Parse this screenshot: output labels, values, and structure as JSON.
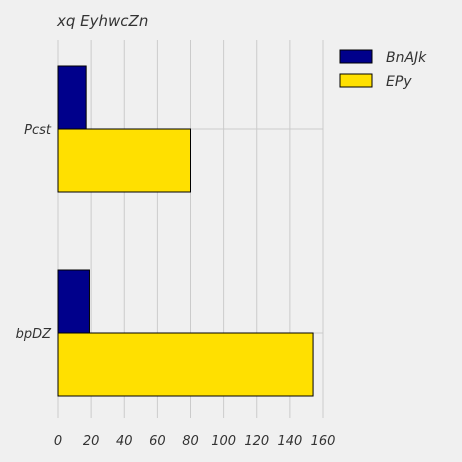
{
  "chart_data": {
    "type": "bar",
    "orientation": "horizontal",
    "title": "xq EyhwcZn",
    "xlabel": "",
    "ylabel": "",
    "categories": [
      "Pcst",
      "bpDZ"
    ],
    "series": [
      {
        "name": "BnAJk",
        "values": [
          17,
          19
        ],
        "color": "#00008b"
      },
      {
        "name": "EPy",
        "values": [
          80,
          154
        ],
        "color": "#ffe000"
      }
    ],
    "xlim": [
      0,
      160
    ],
    "xticks": [
      0,
      20,
      40,
      60,
      80,
      100,
      120,
      140,
      160
    ],
    "grid": true,
    "legend_position": "top-right"
  }
}
